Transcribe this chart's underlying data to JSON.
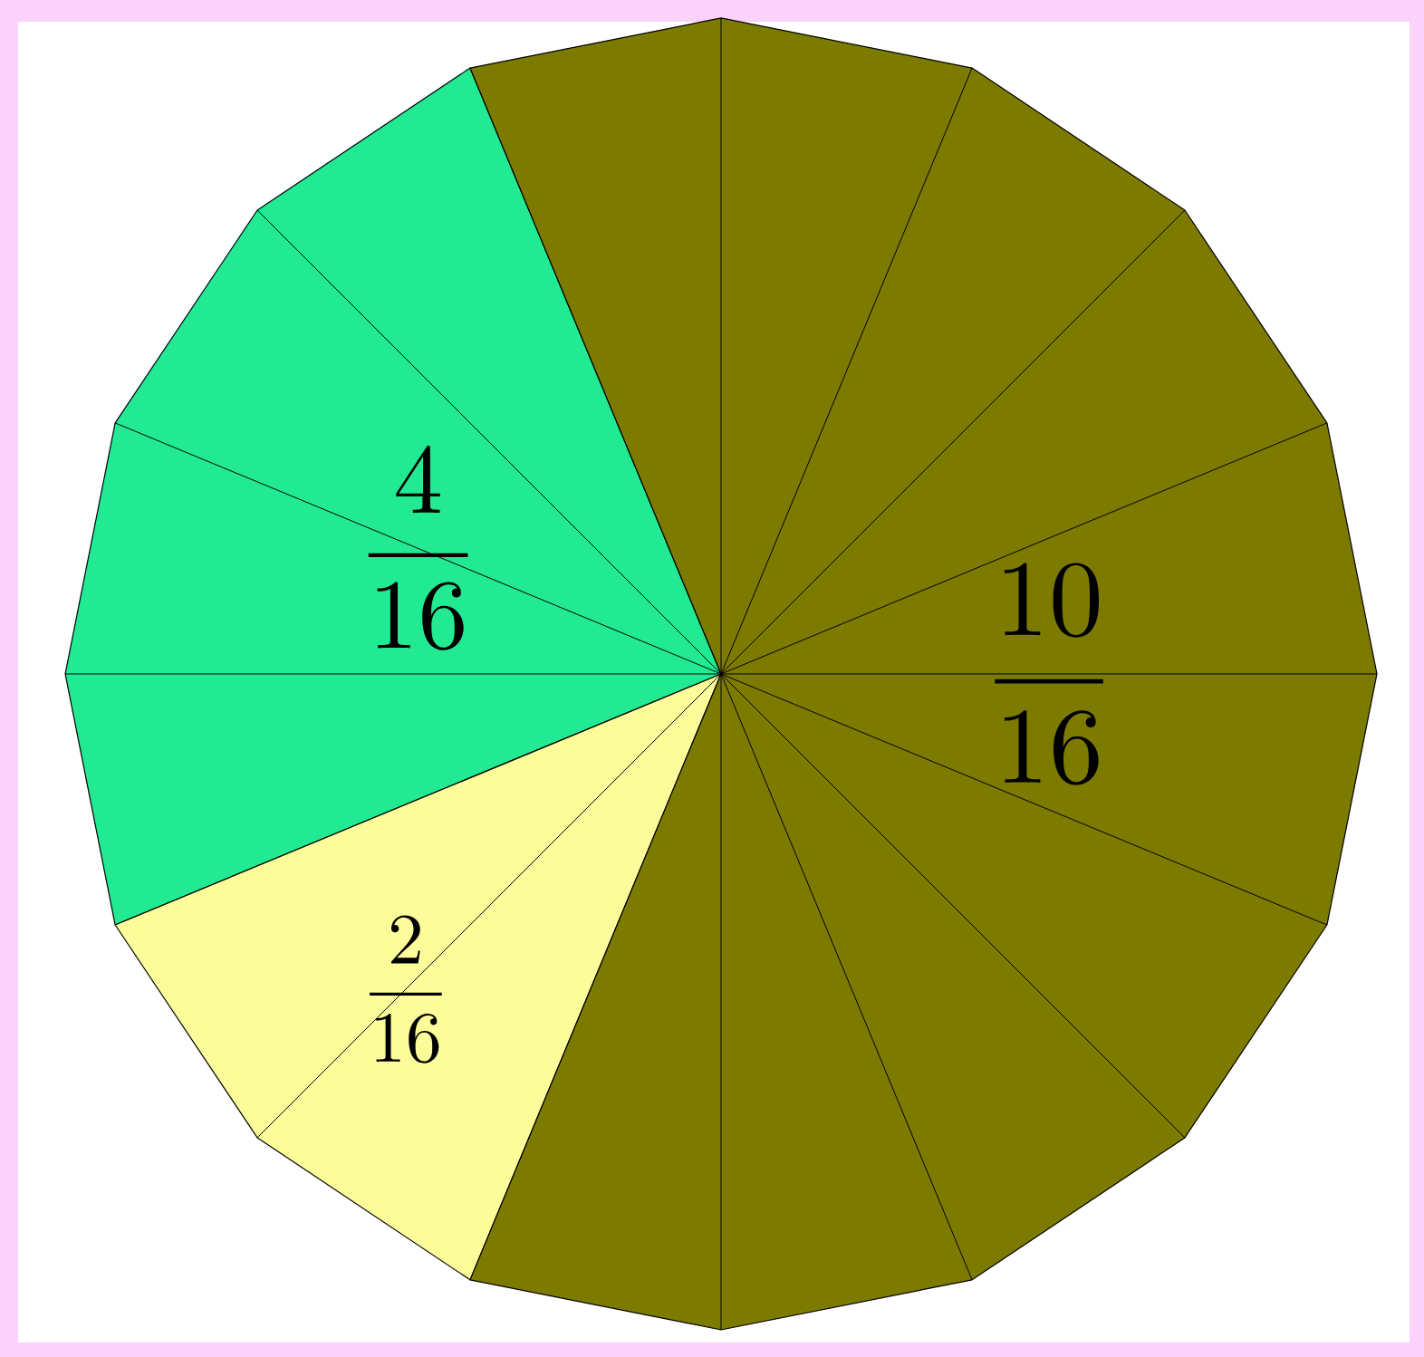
{
  "chart_data": {
    "type": "pie",
    "categories": [
      null,
      null,
      null
    ],
    "values": [
      4,
      2,
      10
    ],
    "colors": [
      "#22ea92",
      "#fcfc9a",
      "#7d7a00"
    ],
    "value_labels": [
      "\\frac{4}{16}",
      "\\frac{2}{16}",
      "\\frac{10}{16}"
    ]
  }
}
